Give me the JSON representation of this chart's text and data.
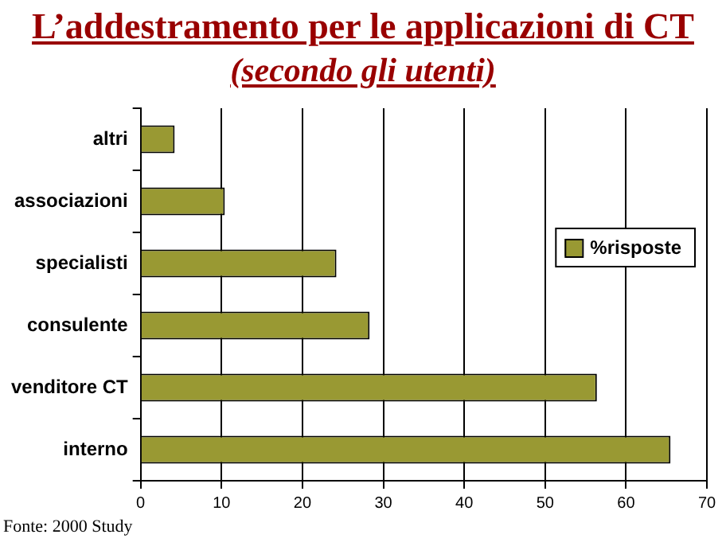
{
  "chart_data": {
    "type": "bar",
    "orientation": "horizontal",
    "title": "L’addestramento per le applicazioni di CT",
    "subtitle": "(secondo gli utenti)",
    "categories": [
      "altri",
      "associazioni",
      "specialisti",
      "consulente",
      "venditore CT",
      "interno"
    ],
    "series": [
      {
        "name": "%risposte",
        "color": "#999933",
        "values": [
          4.2,
          10.4,
          24.2,
          28.3,
          56.4,
          65.5
        ]
      }
    ],
    "xlim": [
      0,
      70
    ],
    "xticks": [
      0,
      10,
      20,
      30,
      40,
      50,
      60,
      70
    ],
    "grid": "x",
    "legend": "right",
    "annotations": [
      "Fonte: 2000 Study"
    ]
  }
}
